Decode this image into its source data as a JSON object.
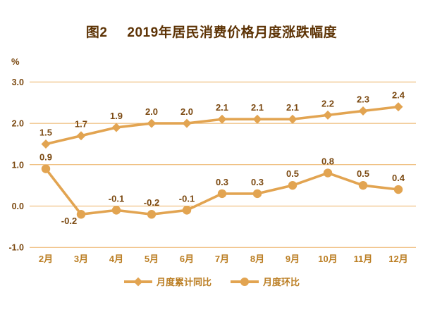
{
  "title": {
    "figure_label": "图2",
    "text": "2019年居民消费价格月度涨跌幅度"
  },
  "y_axis": {
    "unit": "%"
  },
  "legend": [
    {
      "name": "月度累计同比",
      "marker": "diamond"
    },
    {
      "name": "月度环比",
      "marker": "circle"
    }
  ],
  "colors": {
    "line": "#E2A451",
    "gridline": "#EBAE5E",
    "data_label": "#7B4911",
    "axis_label": "#BB7E23",
    "title": "#5D3305"
  },
  "chart_data": {
    "type": "line",
    "title": "图2 2019年居民消费价格月度涨跌幅度",
    "categories": [
      "2月",
      "3月",
      "4月",
      "5月",
      "6月",
      "7月",
      "8月",
      "9月",
      "10月",
      "11月",
      "12月"
    ],
    "series": [
      {
        "name": "月度累计同比",
        "marker": "diamond",
        "values": [
          1.5,
          1.7,
          1.9,
          2.0,
          2.0,
          2.1,
          2.1,
          2.1,
          2.2,
          2.3,
          2.4
        ]
      },
      {
        "name": "月度环比",
        "marker": "circle",
        "values": [
          0.9,
          -0.2,
          -0.1,
          -0.2,
          -0.1,
          0.3,
          0.3,
          0.5,
          0.8,
          0.5,
          0.4
        ],
        "label_offsets": {
          "1": {
            "dx": -17,
            "dy": 14
          }
        }
      }
    ],
    "xlabel": "",
    "ylabel": "%",
    "ylim": [
      -1.0,
      3.0
    ],
    "yticks": [
      3.0,
      2.0,
      1.0,
      0.0,
      -1.0
    ],
    "grid": true,
    "legend_position": "bottom"
  }
}
